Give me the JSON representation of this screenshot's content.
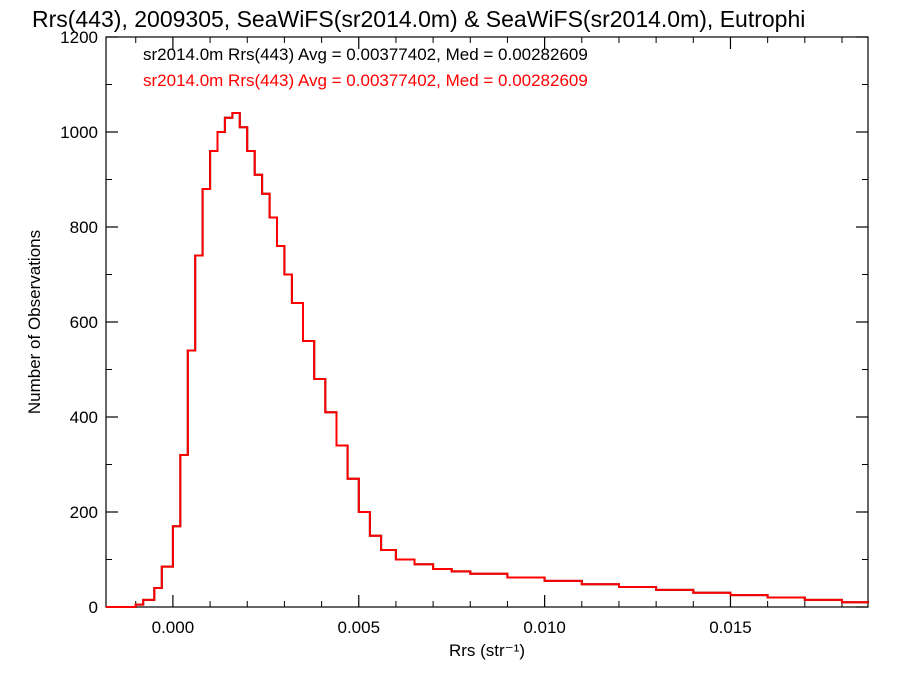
{
  "chart_data": {
    "type": "histogram-step",
    "title": "Rrs(443), 2009305, SeaWiFS(sr2014.0m) & SeaWiFS(sr2014.0m), Eutrophi",
    "xlabel": "Rrs (str⁻¹)",
    "ylabel": "Number of Observations",
    "xlim": [
      -0.0018,
      0.0187
    ],
    "ylim": [
      0,
      1200
    ],
    "xticks": [
      0.0,
      0.005,
      0.01,
      0.015
    ],
    "xtick_labels": [
      "0.000",
      "0.005",
      "0.010",
      "0.015"
    ],
    "yticks": [
      0,
      200,
      400,
      600,
      800,
      1000,
      1200
    ],
    "ytick_labels": [
      "0",
      "200",
      "400",
      "600",
      "800",
      "1000",
      "1200"
    ],
    "grid": false,
    "legend_placement": "top-left",
    "series": [
      {
        "legend": "sr2014.0m Rrs(443) Avg = 0.00377402, Med = 0.00282609",
        "color": "#000000",
        "x": [
          -0.0018,
          -0.0014,
          -0.001,
          -0.0008,
          -0.0005,
          -0.0003,
          0.0,
          0.0002,
          0.0004,
          0.0006,
          0.0008,
          0.001,
          0.0012,
          0.0014,
          0.0016,
          0.0018,
          0.002,
          0.0022,
          0.0024,
          0.0026,
          0.0028,
          0.003,
          0.0032,
          0.0035,
          0.0038,
          0.0041,
          0.0044,
          0.0047,
          0.005,
          0.0053,
          0.0056,
          0.006,
          0.0065,
          0.007,
          0.0075,
          0.008,
          0.009,
          0.01,
          0.011,
          0.012,
          0.013,
          0.014,
          0.015,
          0.016,
          0.017,
          0.018,
          0.0187
        ],
        "y": [
          0,
          0,
          5,
          15,
          40,
          85,
          170,
          320,
          540,
          740,
          880,
          960,
          1000,
          1030,
          1040,
          1010,
          960,
          910,
          870,
          820,
          760,
          700,
          640,
          560,
          480,
          410,
          340,
          270,
          200,
          150,
          120,
          100,
          90,
          80,
          75,
          70,
          62,
          55,
          48,
          42,
          36,
          30,
          25,
          20,
          15,
          10,
          8
        ]
      },
      {
        "legend": "sr2014.0m Rrs(443) Avg = 0.00377402, Med = 0.00282609",
        "color": "#ff0000",
        "x": [
          -0.0018,
          -0.0014,
          -0.001,
          -0.0008,
          -0.0005,
          -0.0003,
          0.0,
          0.0002,
          0.0004,
          0.0006,
          0.0008,
          0.001,
          0.0012,
          0.0014,
          0.0016,
          0.0018,
          0.002,
          0.0022,
          0.0024,
          0.0026,
          0.0028,
          0.003,
          0.0032,
          0.0035,
          0.0038,
          0.0041,
          0.0044,
          0.0047,
          0.005,
          0.0053,
          0.0056,
          0.006,
          0.0065,
          0.007,
          0.0075,
          0.008,
          0.009,
          0.01,
          0.011,
          0.012,
          0.013,
          0.014,
          0.015,
          0.016,
          0.017,
          0.018,
          0.0187
        ],
        "y": [
          0,
          0,
          5,
          15,
          40,
          85,
          170,
          320,
          540,
          740,
          880,
          960,
          1000,
          1030,
          1040,
          1010,
          960,
          910,
          870,
          820,
          760,
          700,
          640,
          560,
          480,
          410,
          340,
          270,
          200,
          150,
          120,
          100,
          90,
          80,
          75,
          70,
          62,
          55,
          48,
          42,
          36,
          30,
          25,
          20,
          15,
          10,
          8
        ]
      }
    ]
  }
}
